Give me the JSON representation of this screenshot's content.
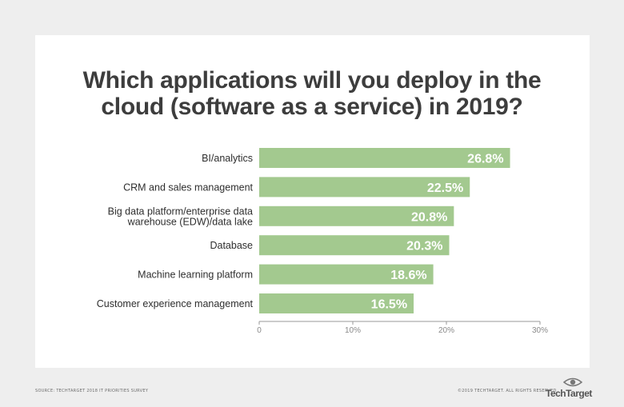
{
  "title_lines": [
    "Which applications will you deploy in the",
    "cloud (software as a service) in 2019?"
  ],
  "footer": {
    "source": "SOURCE: TECHTARGET 2018 IT PRIORITIES SURVEY",
    "copyright": "©2019 TECHTARGET. ALL RIGHTS RESERVED",
    "logo_text": "TechTarget"
  },
  "colors": {
    "bar": "#a3c98f",
    "value_text": "#ffffff",
    "label_text": "#2e2e2e",
    "axis": "#999999",
    "title": "#3d3d3d",
    "background": "#eeeeee",
    "card": "#ffffff"
  },
  "chart_data": {
    "type": "bar",
    "orientation": "horizontal",
    "categories": [
      [
        "BI/analytics"
      ],
      [
        "CRM and sales management"
      ],
      [
        "Big data platform/enterprise data",
        "warehouse (EDW)/data lake"
      ],
      [
        "Database"
      ],
      [
        "Machine learning platform"
      ],
      [
        "Customer experience management"
      ]
    ],
    "values": [
      26.8,
      22.5,
      20.8,
      20.3,
      18.6,
      16.5
    ],
    "value_labels": [
      "26.8%",
      "22.5%",
      "20.8%",
      "20.3%",
      "18.6%",
      "16.5%"
    ],
    "xlim": [
      0,
      30
    ],
    "xticks": [
      0,
      10,
      20,
      30
    ],
    "xtick_labels": [
      "0",
      "10%",
      "20%",
      "30%"
    ],
    "grid": false,
    "legend": "none"
  }
}
